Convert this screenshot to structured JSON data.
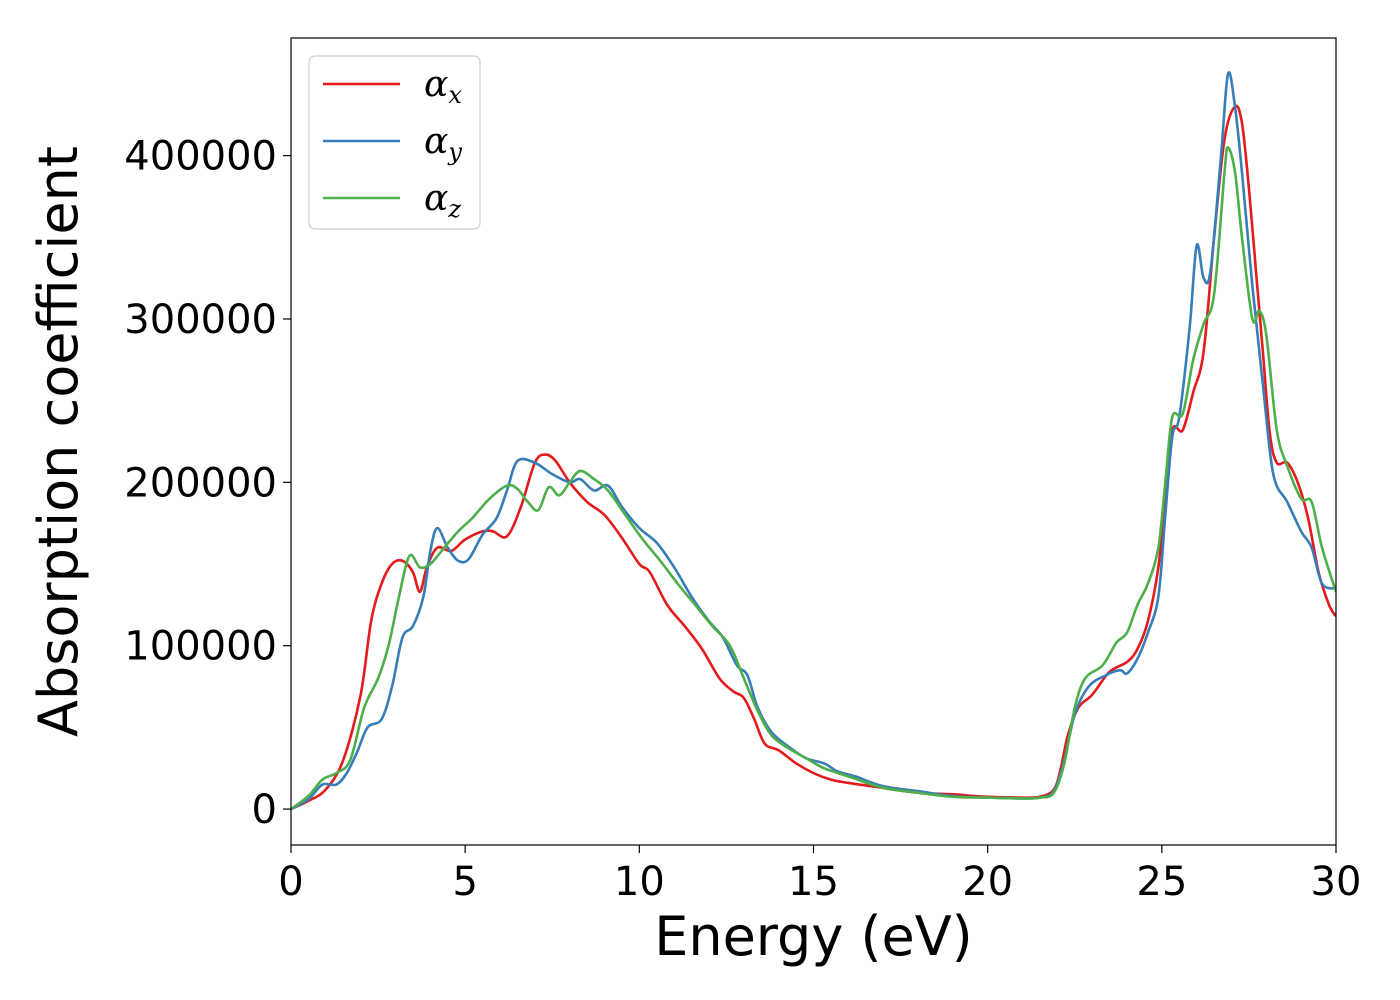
{
  "chart_data": {
    "type": "line",
    "xlabel": "Energy (eV)",
    "ylabel": "Absorption coefficient",
    "xlim": [
      0,
      30
    ],
    "ylim": [
      -22000,
      472000
    ],
    "grid": false,
    "legend_position": "top-left",
    "x_ticks": [
      "0",
      "5",
      "10",
      "15",
      "20",
      "25",
      "30"
    ],
    "y_ticks": [
      "0",
      "100000",
      "200000",
      "300000",
      "400000"
    ],
    "series": [
      {
        "name": "α_x",
        "label_main": "α",
        "label_sub": "x",
        "color": "#e41a1c",
        "points": [
          [
            0,
            0
          ],
          [
            0.5,
            5000
          ],
          [
            1.0,
            12000
          ],
          [
            1.5,
            30000
          ],
          [
            2.0,
            70000
          ],
          [
            2.3,
            115000
          ],
          [
            2.6,
            138000
          ],
          [
            2.9,
            150000
          ],
          [
            3.2,
            152000
          ],
          [
            3.5,
            145000
          ],
          [
            3.7,
            133000
          ],
          [
            3.9,
            148000
          ],
          [
            4.2,
            160000
          ],
          [
            4.6,
            158000
          ],
          [
            5.0,
            165000
          ],
          [
            5.5,
            170000
          ],
          [
            5.8,
            170000
          ],
          [
            6.2,
            167000
          ],
          [
            6.6,
            185000
          ],
          [
            7.0,
            212000
          ],
          [
            7.3,
            217000
          ],
          [
            7.6,
            213000
          ],
          [
            8.0,
            200000
          ],
          [
            8.5,
            188000
          ],
          [
            9.0,
            180000
          ],
          [
            9.5,
            166000
          ],
          [
            10.0,
            150000
          ],
          [
            10.3,
            145000
          ],
          [
            10.8,
            125000
          ],
          [
            11.3,
            112000
          ],
          [
            11.8,
            98000
          ],
          [
            12.3,
            80000
          ],
          [
            12.7,
            72000
          ],
          [
            13.0,
            68000
          ],
          [
            13.3,
            55000
          ],
          [
            13.6,
            40000
          ],
          [
            14.0,
            36000
          ],
          [
            14.5,
            28000
          ],
          [
            15.0,
            22000
          ],
          [
            15.5,
            18000
          ],
          [
            16.0,
            16000
          ],
          [
            17.0,
            13000
          ],
          [
            18.0,
            10000
          ],
          [
            19.0,
            9000
          ],
          [
            20.0,
            7500
          ],
          [
            21.0,
            7000
          ],
          [
            21.5,
            7500
          ],
          [
            21.9,
            12000
          ],
          [
            22.1,
            25000
          ],
          [
            22.3,
            45000
          ],
          [
            22.6,
            62000
          ],
          [
            23.0,
            70000
          ],
          [
            23.5,
            84000
          ],
          [
            24.0,
            90000
          ],
          [
            24.3,
            98000
          ],
          [
            24.6,
            115000
          ],
          [
            24.9,
            148000
          ],
          [
            25.1,
            190000
          ],
          [
            25.3,
            232000
          ],
          [
            25.6,
            232000
          ],
          [
            25.9,
            255000
          ],
          [
            26.2,
            280000
          ],
          [
            26.5,
            350000
          ],
          [
            26.8,
            410000
          ],
          [
            27.1,
            430000
          ],
          [
            27.3,
            420000
          ],
          [
            27.5,
            380000
          ],
          [
            27.7,
            330000
          ],
          [
            27.9,
            280000
          ],
          [
            28.1,
            230000
          ],
          [
            28.3,
            212000
          ],
          [
            28.6,
            212000
          ],
          [
            28.9,
            200000
          ],
          [
            29.2,
            178000
          ],
          [
            29.5,
            145000
          ],
          [
            29.8,
            125000
          ],
          [
            30.0,
            118000
          ]
        ]
      },
      {
        "name": "α_y",
        "label_main": "α",
        "label_sub": "y",
        "color": "#377eb8",
        "points": [
          [
            0,
            0
          ],
          [
            0.5,
            6000
          ],
          [
            0.9,
            15000
          ],
          [
            1.3,
            15000
          ],
          [
            1.6,
            22000
          ],
          [
            1.9,
            35000
          ],
          [
            2.2,
            50000
          ],
          [
            2.6,
            55000
          ],
          [
            2.9,
            75000
          ],
          [
            3.2,
            105000
          ],
          [
            3.5,
            112000
          ],
          [
            3.8,
            130000
          ],
          [
            4.0,
            158000
          ],
          [
            4.2,
            172000
          ],
          [
            4.5,
            160000
          ],
          [
            4.8,
            152000
          ],
          [
            5.1,
            153000
          ],
          [
            5.5,
            168000
          ],
          [
            5.9,
            178000
          ],
          [
            6.2,
            195000
          ],
          [
            6.5,
            213000
          ],
          [
            7.0,
            212000
          ],
          [
            7.5,
            205000
          ],
          [
            8.0,
            200000
          ],
          [
            8.3,
            202000
          ],
          [
            8.7,
            195000
          ],
          [
            9.1,
            198000
          ],
          [
            9.5,
            185000
          ],
          [
            10.0,
            172000
          ],
          [
            10.5,
            163000
          ],
          [
            11.0,
            148000
          ],
          [
            11.5,
            130000
          ],
          [
            12.0,
            115000
          ],
          [
            12.4,
            105000
          ],
          [
            12.8,
            88000
          ],
          [
            13.1,
            82000
          ],
          [
            13.4,
            62000
          ],
          [
            13.8,
            47000
          ],
          [
            14.3,
            38000
          ],
          [
            14.8,
            31000
          ],
          [
            15.3,
            28000
          ],
          [
            15.7,
            23000
          ],
          [
            16.2,
            20000
          ],
          [
            17.0,
            14000
          ],
          [
            18.0,
            11000
          ],
          [
            19.0,
            8000
          ],
          [
            20.0,
            7000
          ],
          [
            21.0,
            6500
          ],
          [
            21.5,
            7000
          ],
          [
            21.9,
            11000
          ],
          [
            22.2,
            30000
          ],
          [
            22.5,
            58000
          ],
          [
            22.9,
            75000
          ],
          [
            23.4,
            82000
          ],
          [
            23.8,
            85000
          ],
          [
            24.0,
            83000
          ],
          [
            24.3,
            92000
          ],
          [
            24.6,
            108000
          ],
          [
            24.9,
            130000
          ],
          [
            25.1,
            180000
          ],
          [
            25.3,
            228000
          ],
          [
            25.5,
            240000
          ],
          [
            25.8,
            295000
          ],
          [
            26.0,
            345000
          ],
          [
            26.2,
            325000
          ],
          [
            26.4,
            330000
          ],
          [
            26.7,
            400000
          ],
          [
            26.9,
            450000
          ],
          [
            27.1,
            430000
          ],
          [
            27.3,
            390000
          ],
          [
            27.6,
            320000
          ],
          [
            27.9,
            260000
          ],
          [
            28.2,
            205000
          ],
          [
            28.6,
            188000
          ],
          [
            29.0,
            170000
          ],
          [
            29.3,
            160000
          ],
          [
            29.6,
            138000
          ],
          [
            30.0,
            135000
          ]
        ]
      },
      {
        "name": "α_z",
        "label_main": "α",
        "label_sub": "z",
        "color": "#4daf4a",
        "points": [
          [
            0,
            0
          ],
          [
            0.5,
            8000
          ],
          [
            0.9,
            18000
          ],
          [
            1.3,
            22000
          ],
          [
            1.7,
            30000
          ],
          [
            2.1,
            62000
          ],
          [
            2.5,
            80000
          ],
          [
            2.8,
            100000
          ],
          [
            3.1,
            130000
          ],
          [
            3.4,
            155000
          ],
          [
            3.7,
            148000
          ],
          [
            4.0,
            150000
          ],
          [
            4.4,
            160000
          ],
          [
            4.8,
            170000
          ],
          [
            5.2,
            178000
          ],
          [
            5.7,
            190000
          ],
          [
            6.2,
            198000
          ],
          [
            6.5,
            196000
          ],
          [
            6.8,
            188000
          ],
          [
            7.1,
            183000
          ],
          [
            7.4,
            197000
          ],
          [
            7.7,
            192000
          ],
          [
            8.0,
            200000
          ],
          [
            8.3,
            207000
          ],
          [
            8.7,
            202000
          ],
          [
            9.1,
            195000
          ],
          [
            9.6,
            180000
          ],
          [
            10.1,
            165000
          ],
          [
            10.6,
            152000
          ],
          [
            11.1,
            138000
          ],
          [
            11.6,
            125000
          ],
          [
            12.1,
            112000
          ],
          [
            12.6,
            100000
          ],
          [
            13.0,
            80000
          ],
          [
            13.4,
            60000
          ],
          [
            13.8,
            45000
          ],
          [
            14.3,
            37000
          ],
          [
            14.8,
            31000
          ],
          [
            15.3,
            25000
          ],
          [
            16.0,
            20000
          ],
          [
            17.0,
            13000
          ],
          [
            18.0,
            10000
          ],
          [
            19.0,
            7500
          ],
          [
            20.0,
            7000
          ],
          [
            21.0,
            6500
          ],
          [
            21.5,
            7000
          ],
          [
            21.9,
            10000
          ],
          [
            22.2,
            28000
          ],
          [
            22.5,
            62000
          ],
          [
            22.8,
            80000
          ],
          [
            23.3,
            88000
          ],
          [
            23.7,
            102000
          ],
          [
            24.0,
            108000
          ],
          [
            24.3,
            125000
          ],
          [
            24.6,
            138000
          ],
          [
            24.9,
            160000
          ],
          [
            25.1,
            200000
          ],
          [
            25.3,
            240000
          ],
          [
            25.6,
            242000
          ],
          [
            25.9,
            275000
          ],
          [
            26.2,
            297000
          ],
          [
            26.5,
            315000
          ],
          [
            26.8,
            390000
          ],
          [
            26.9,
            405000
          ],
          [
            27.1,
            390000
          ],
          [
            27.3,
            350000
          ],
          [
            27.6,
            300000
          ],
          [
            27.8,
            305000
          ],
          [
            28.0,
            290000
          ],
          [
            28.3,
            232000
          ],
          [
            28.6,
            210000
          ],
          [
            29.0,
            190000
          ],
          [
            29.3,
            188000
          ],
          [
            29.6,
            160000
          ],
          [
            30.0,
            133000
          ]
        ]
      }
    ]
  }
}
